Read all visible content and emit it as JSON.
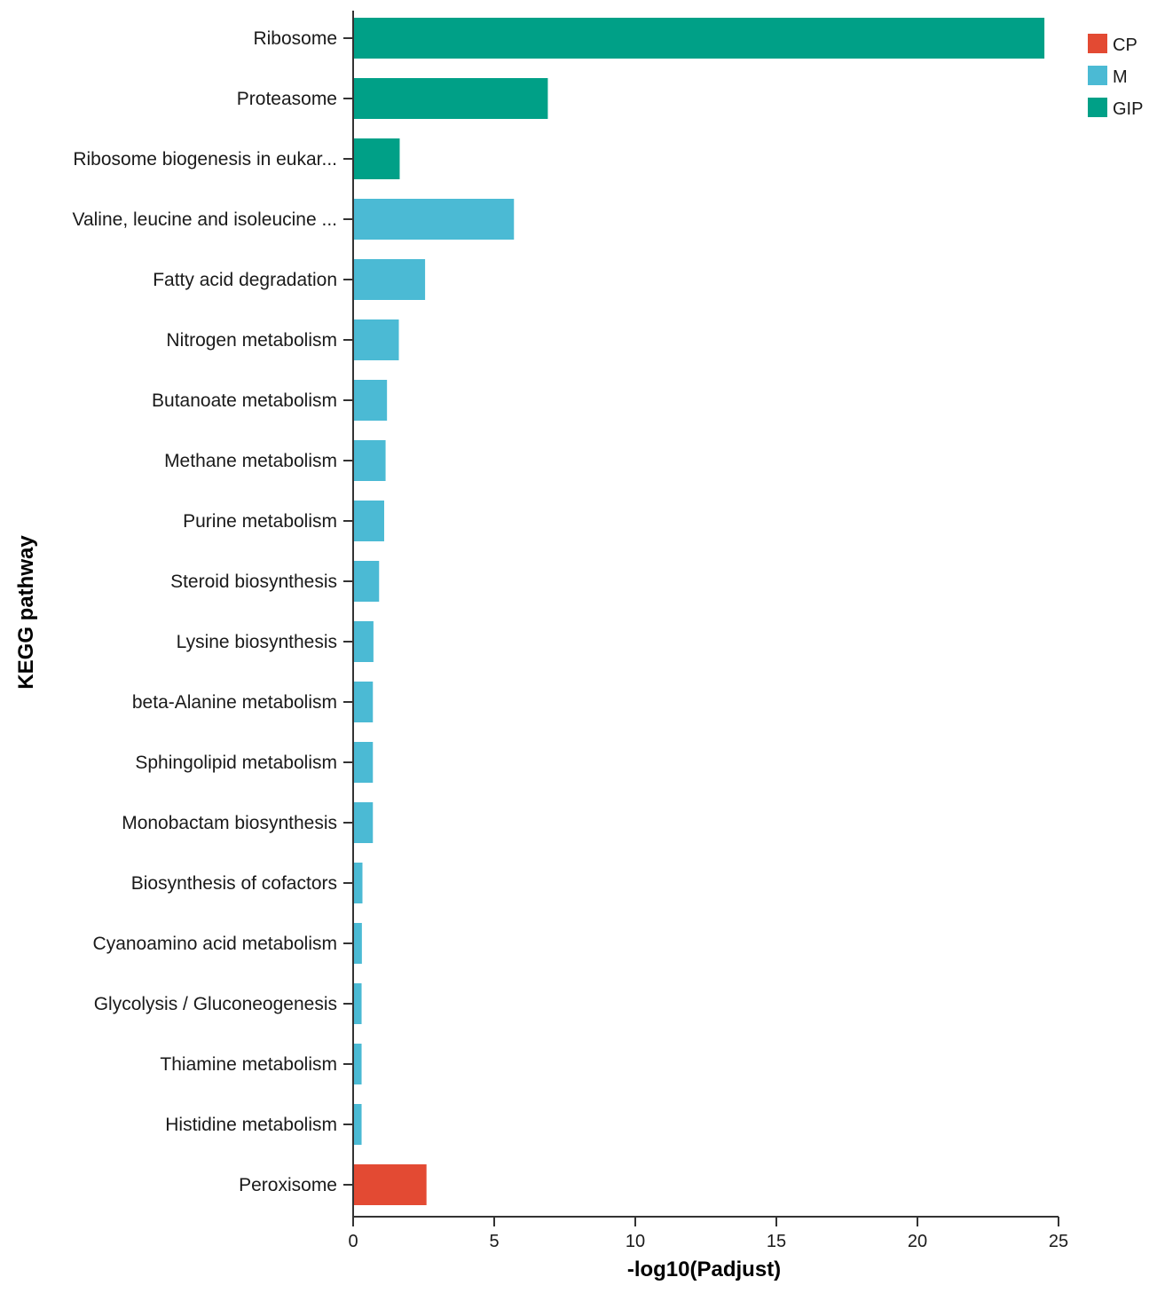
{
  "chart_data": {
    "type": "bar",
    "orientation": "horizontal",
    "title": "",
    "xlabel": "-log10(Padjust)",
    "ylabel": "KEGG pathway",
    "xlim": [
      0,
      25
    ],
    "x_ticks": [
      "0",
      "5",
      "10",
      "15",
      "20",
      "25"
    ],
    "grid": false,
    "legend_position": "top-right",
    "groups": [
      {
        "key": "CP",
        "label": "CP",
        "color": "#e34a33"
      },
      {
        "key": "M",
        "label": "M",
        "color": "#4bbad4"
      },
      {
        "key": "GIP",
        "label": "GIP",
        "color": "#00a087"
      }
    ],
    "categories": [
      "Ribosome",
      "Proteasome",
      "Ribosome biogenesis in eukar...",
      "Valine, leucine and isoleucine ...",
      "Fatty acid degradation",
      "Nitrogen metabolism",
      "Butanoate metabolism",
      "Methane metabolism",
      "Purine metabolism",
      "Steroid biosynthesis",
      "Lysine biosynthesis",
      "beta-Alanine metabolism",
      "Sphingolipid metabolism",
      "Monobactam biosynthesis",
      "Biosynthesis of cofactors",
      "Cyanoamino acid metabolism",
      "Glycolysis / Gluconeogenesis",
      "Thiamine metabolism",
      "Histidine metabolism",
      "Peroxisome"
    ],
    "values": [
      24.5,
      6.9,
      1.65,
      5.7,
      2.55,
      1.62,
      1.2,
      1.15,
      1.1,
      0.92,
      0.72,
      0.7,
      0.7,
      0.7,
      0.33,
      0.31,
      0.3,
      0.3,
      0.3,
      2.6
    ],
    "group_of": [
      "GIP",
      "GIP",
      "GIP",
      "M",
      "M",
      "M",
      "M",
      "M",
      "M",
      "M",
      "M",
      "M",
      "M",
      "M",
      "M",
      "M",
      "M",
      "M",
      "M",
      "CP"
    ]
  }
}
